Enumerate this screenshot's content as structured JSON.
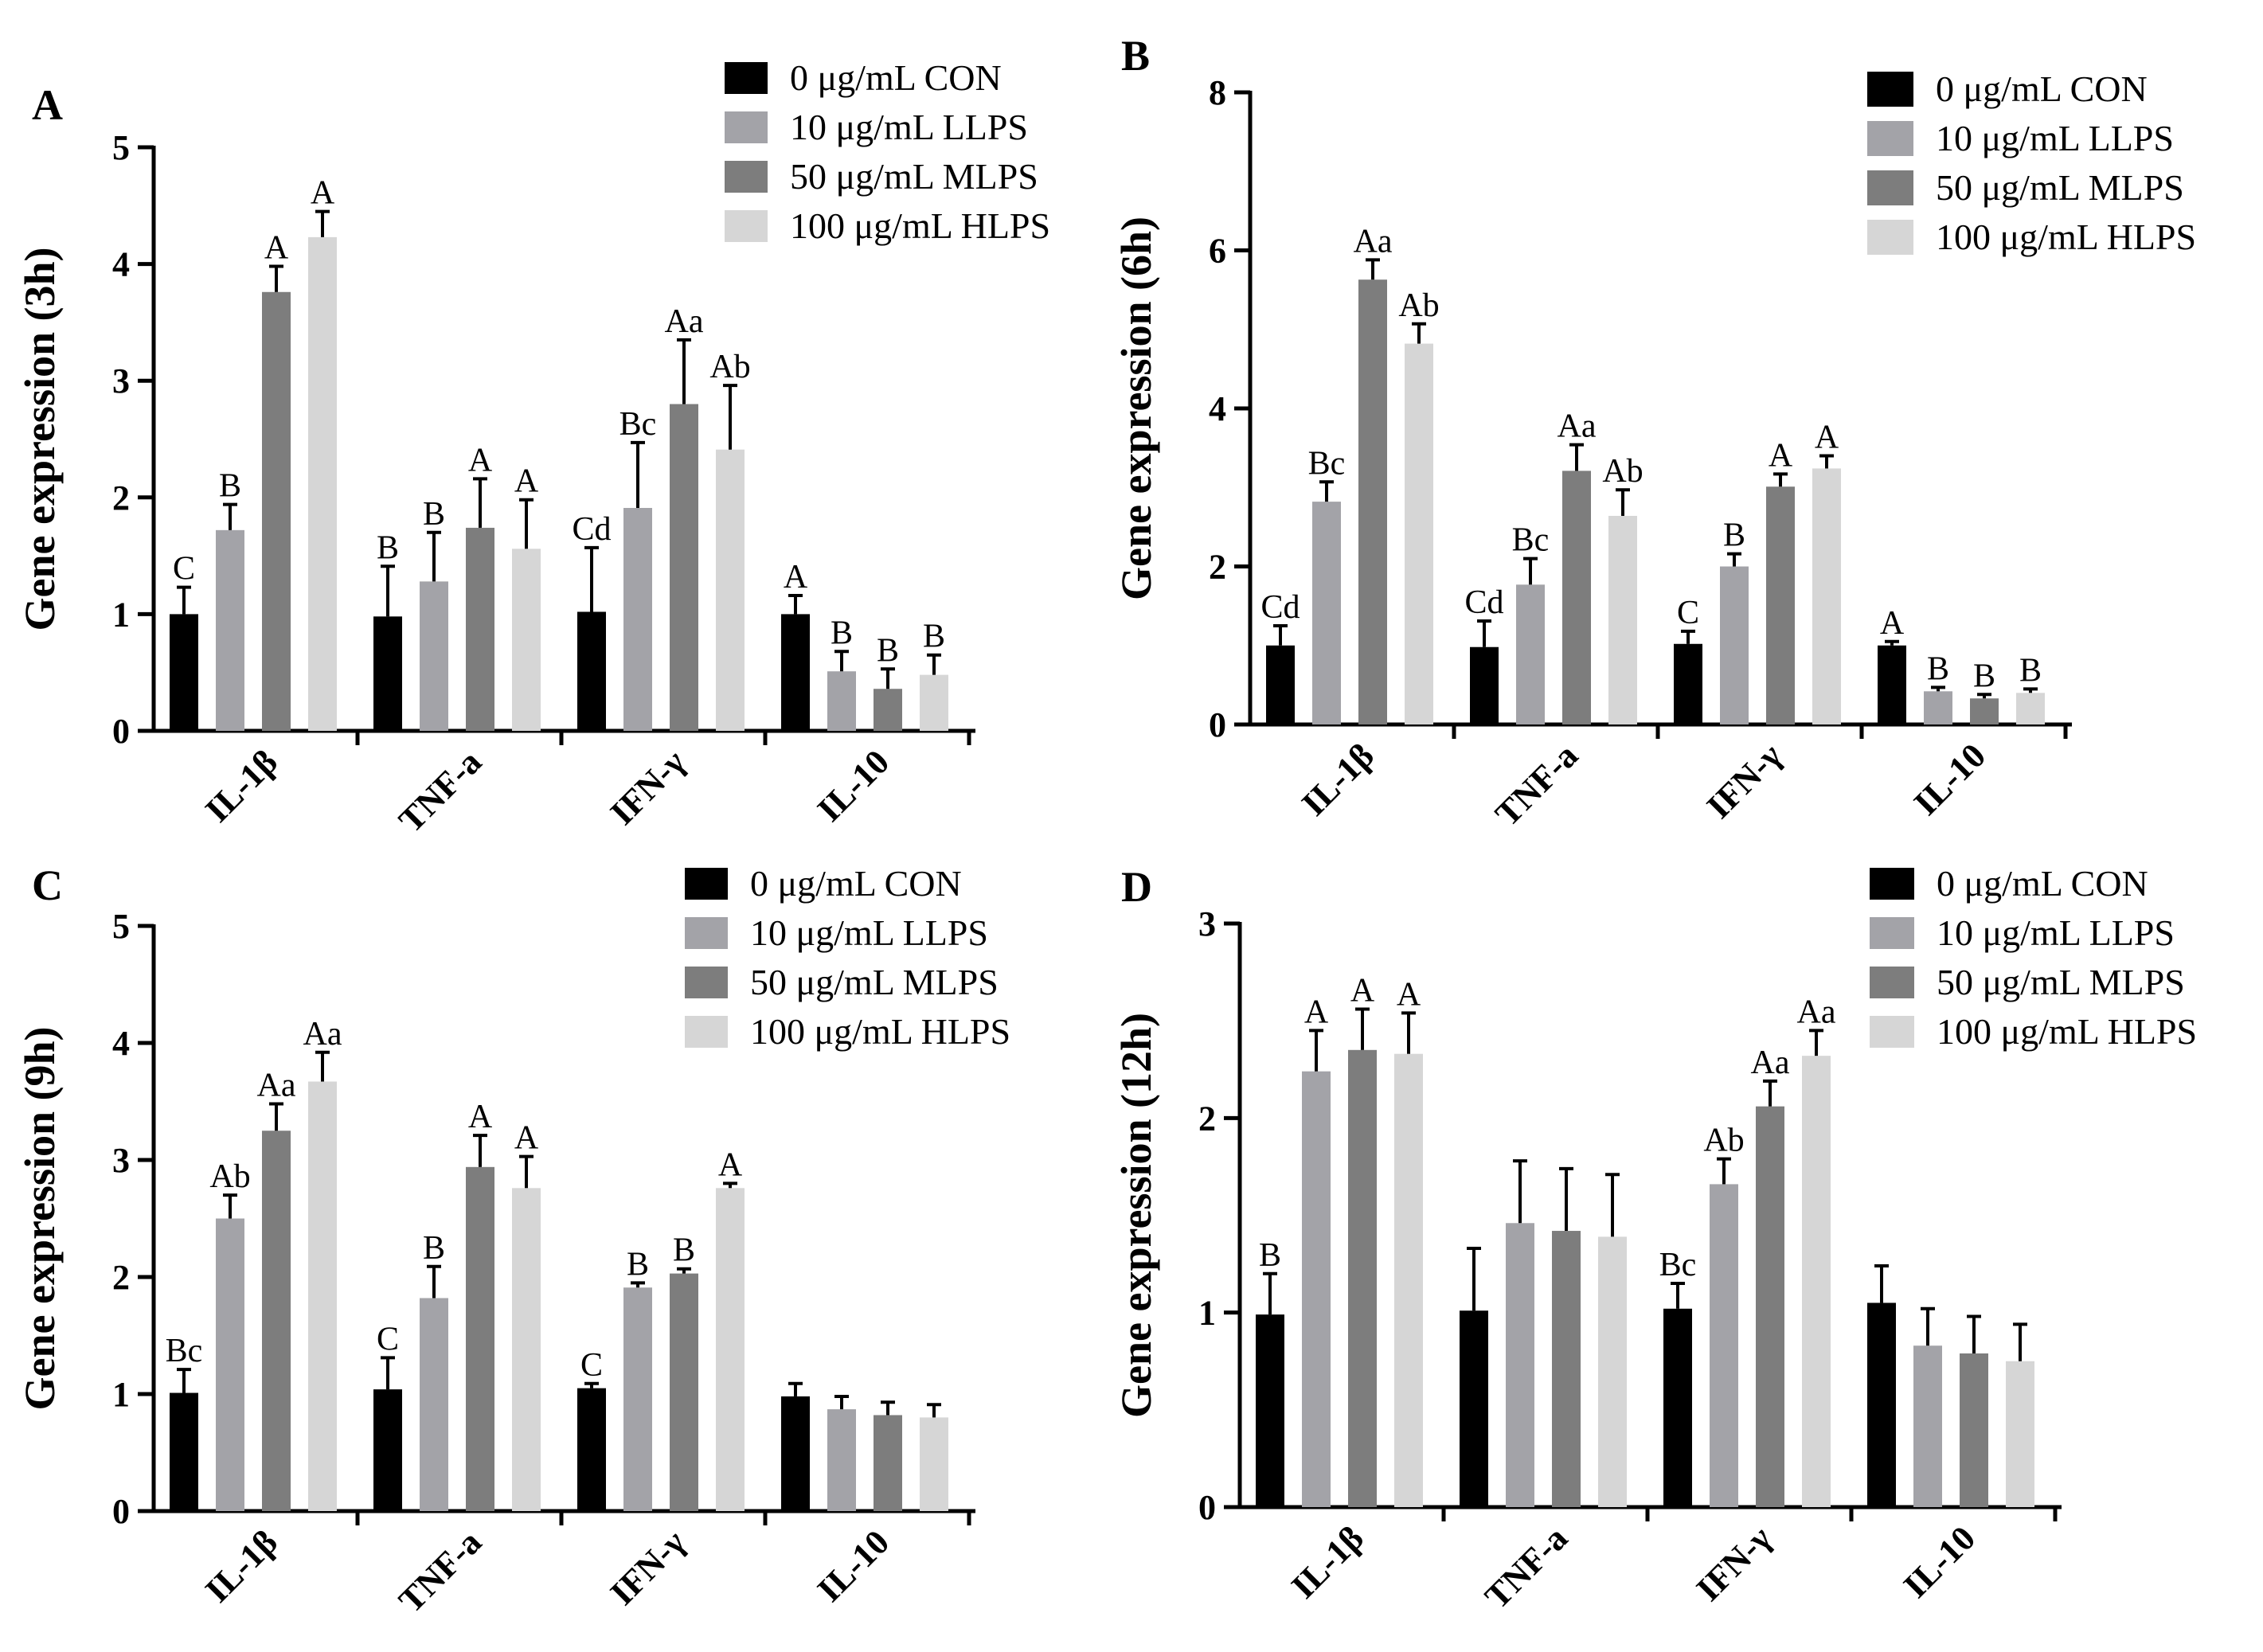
{
  "series_styles": [
    {
      "name": "0 μg/mL CON",
      "color": "#000000"
    },
    {
      "name": "10 μg/mL LLPS",
      "color": "#a3a3a8"
    },
    {
      "name": "50 μg/mL MLPS",
      "color": "#7d7d7d"
    },
    {
      "name": "100 μg/mL HLPS",
      "color": "#d6d6d6"
    }
  ],
  "chart_data": [
    {
      "panel": "A",
      "type": "bar",
      "title": "",
      "xlabel": "",
      "ylabel": "Gene expression (3h)",
      "ylim": [
        0,
        5
      ],
      "yticks": [
        0,
        1,
        2,
        3,
        4,
        5
      ],
      "categories": [
        "IL-1β",
        "TNF-a",
        "IFN-γ",
        "IL-10"
      ],
      "series": [
        {
          "name": "0 μg/mL CON",
          "values": [
            1.0,
            0.98,
            1.02,
            1.0
          ],
          "errors": [
            0.23,
            0.43,
            0.55,
            0.16
          ],
          "labels": [
            "C",
            "B",
            "Cd",
            "A"
          ]
        },
        {
          "name": "10 μg/mL LLPS",
          "values": [
            1.72,
            1.28,
            1.91,
            0.51
          ],
          "errors": [
            0.22,
            0.42,
            0.56,
            0.17
          ],
          "labels": [
            "B",
            "B",
            "Bc",
            "B"
          ]
        },
        {
          "name": "50 μg/mL MLPS",
          "values": [
            3.76,
            1.74,
            2.8,
            0.36
          ],
          "errors": [
            0.22,
            0.42,
            0.55,
            0.17
          ],
          "labels": [
            "A",
            "A",
            "Aa",
            "B"
          ]
        },
        {
          "name": "100 μg/mL HLPS",
          "values": [
            4.23,
            1.56,
            2.41,
            0.48
          ],
          "errors": [
            0.22,
            0.42,
            0.55,
            0.17
          ],
          "labels": [
            "A",
            "A",
            "Ab",
            "B"
          ]
        }
      ]
    },
    {
      "panel": "B",
      "type": "bar",
      "title": "",
      "xlabel": "",
      "ylabel": "Gene expression (6h)",
      "ylim": [
        0,
        8
      ],
      "yticks": [
        0,
        2,
        4,
        6,
        8
      ],
      "categories": [
        "IL-1β",
        "TNF-a",
        "IFN-γ",
        "IL-10"
      ],
      "series": [
        {
          "name": "0 μg/mL CON",
          "values": [
            1.0,
            0.98,
            1.02,
            1.0
          ],
          "errors": [
            0.25,
            0.33,
            0.16,
            0.05
          ],
          "labels": [
            "Cd",
            "Cd",
            "C",
            "A"
          ]
        },
        {
          "name": "10 μg/mL LLPS",
          "values": [
            2.82,
            1.77,
            2.0,
            0.42
          ],
          "errors": [
            0.25,
            0.33,
            0.16,
            0.05
          ],
          "labels": [
            "Bc",
            "Bc",
            "B",
            "B"
          ]
        },
        {
          "name": "50 μg/mL MLPS",
          "values": [
            5.63,
            3.21,
            3.01,
            0.33
          ],
          "errors": [
            0.25,
            0.33,
            0.16,
            0.05
          ],
          "labels": [
            "Aa",
            "Aa",
            "A",
            "B"
          ]
        },
        {
          "name": "100 μg/mL HLPS",
          "values": [
            4.82,
            2.64,
            3.24,
            0.4
          ],
          "errors": [
            0.25,
            0.33,
            0.16,
            0.05
          ],
          "labels": [
            "Ab",
            "Ab",
            "A",
            "B"
          ]
        }
      ]
    },
    {
      "panel": "C",
      "type": "bar",
      "title": "",
      "xlabel": "",
      "ylabel": "Gene expression (9h)",
      "ylim": [
        0,
        5
      ],
      "yticks": [
        0,
        1,
        2,
        3,
        4,
        5
      ],
      "categories": [
        "IL-1β",
        "TNF-a",
        "IFN-γ",
        "IL-10"
      ],
      "series": [
        {
          "name": "0 μg/mL CON",
          "values": [
            1.01,
            1.04,
            1.05,
            0.98
          ],
          "errors": [
            0.2,
            0.27,
            0.04,
            0.11
          ],
          "labels": [
            "Bc",
            "C",
            "C",
            ""
          ]
        },
        {
          "name": "10 μg/mL LLPS",
          "values": [
            2.5,
            1.82,
            1.91,
            0.87
          ],
          "errors": [
            0.2,
            0.27,
            0.04,
            0.11
          ],
          "labels": [
            "Ab",
            "B",
            "B",
            ""
          ]
        },
        {
          "name": "50 μg/mL MLPS",
          "values": [
            3.25,
            2.94,
            2.03,
            0.82
          ],
          "errors": [
            0.23,
            0.27,
            0.04,
            0.11
          ],
          "labels": [
            "Aa",
            "A",
            "B",
            ""
          ]
        },
        {
          "name": "100 μg/mL HLPS",
          "values": [
            3.67,
            2.76,
            2.76,
            0.8
          ],
          "errors": [
            0.25,
            0.27,
            0.04,
            0.11
          ],
          "labels": [
            "Aa",
            "A",
            "A",
            ""
          ]
        }
      ]
    },
    {
      "panel": "D",
      "type": "bar",
      "title": "",
      "xlabel": "",
      "ylabel": "Gene expression (12h)",
      "ylim": [
        0,
        3
      ],
      "yticks": [
        0,
        1,
        2,
        3
      ],
      "categories": [
        "IL-1β",
        "TNF-a",
        "IFN-γ",
        "IL-10"
      ],
      "series": [
        {
          "name": "0 μg/mL CON",
          "values": [
            0.99,
            1.01,
            1.02,
            1.05
          ],
          "errors": [
            0.21,
            0.32,
            0.13,
            0.19
          ],
          "labels": [
            "B",
            "",
            "Bc",
            ""
          ]
        },
        {
          "name": "10 μg/mL LLPS",
          "values": [
            2.24,
            1.46,
            1.66,
            0.83
          ],
          "errors": [
            0.21,
            0.32,
            0.13,
            0.19
          ],
          "labels": [
            "A",
            "",
            "Ab",
            ""
          ]
        },
        {
          "name": "50 μg/mL MLPS",
          "values": [
            2.35,
            1.42,
            2.06,
            0.79
          ],
          "errors": [
            0.21,
            0.32,
            0.13,
            0.19
          ],
          "labels": [
            "A",
            "",
            "Aa",
            ""
          ]
        },
        {
          "name": "100 μg/mL HLPS",
          "values": [
            2.33,
            1.39,
            2.32,
            0.75
          ],
          "errors": [
            0.21,
            0.32,
            0.13,
            0.19
          ],
          "labels": [
            "A",
            "",
            "Aa",
            ""
          ]
        }
      ]
    }
  ]
}
